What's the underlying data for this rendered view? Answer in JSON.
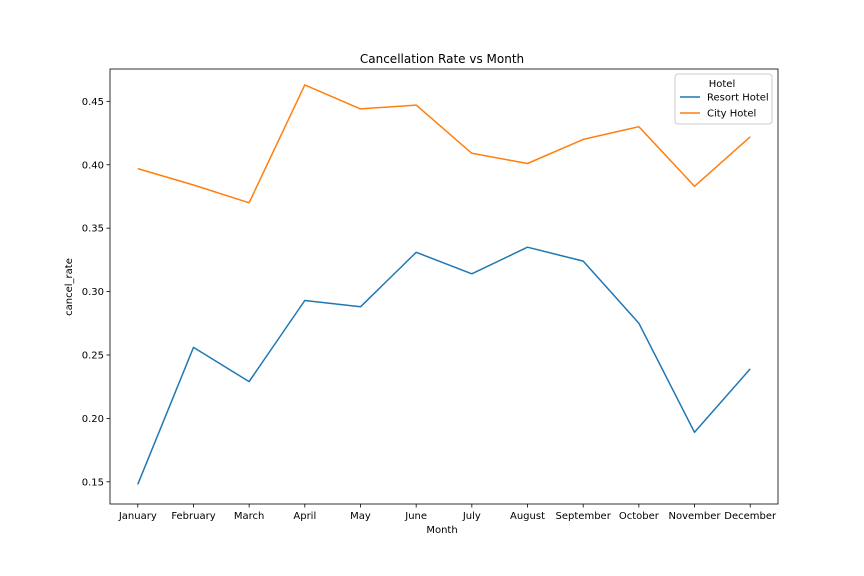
{
  "chart_data": {
    "type": "line",
    "title": "Cancellation Rate vs Month",
    "xlabel": "Month",
    "ylabel": "cancel_rate",
    "categories": [
      "January",
      "February",
      "March",
      "April",
      "May",
      "June",
      "July",
      "August",
      "September",
      "October",
      "November",
      "December"
    ],
    "y_ticks": [
      "0.15",
      "0.20",
      "0.25",
      "0.30",
      "0.35",
      "0.40",
      "0.45"
    ],
    "ylim": [
      0.1325,
      0.4755
    ],
    "grid": false,
    "legend": {
      "title": "Hotel",
      "position": "top-right"
    },
    "series": [
      {
        "name": "Resort Hotel",
        "color": "#1f77b4",
        "values": [
          0.148,
          0.256,
          0.229,
          0.293,
          0.288,
          0.331,
          0.314,
          0.335,
          0.324,
          0.275,
          0.189,
          0.239
        ]
      },
      {
        "name": "City Hotel",
        "color": "#ff7f0e",
        "values": [
          0.397,
          0.384,
          0.37,
          0.463,
          0.444,
          0.447,
          0.409,
          0.401,
          0.42,
          0.43,
          0.383,
          0.422
        ]
      }
    ]
  }
}
